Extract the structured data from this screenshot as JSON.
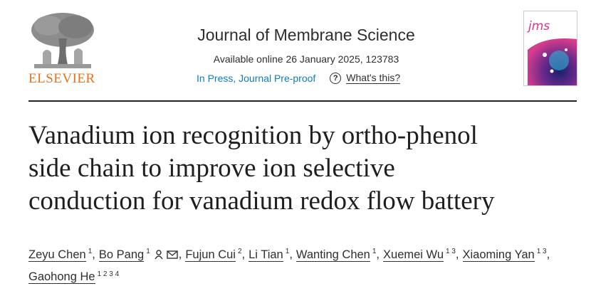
{
  "header": {
    "publisher": "ELSEVIER",
    "journal": "Journal of Membrane Science",
    "available": "Available online 26 January 2025, 123783",
    "status": "In Press, Journal Pre-proof",
    "help_icon": "?",
    "help": "What's this?",
    "cover_logo": "jms"
  },
  "title_lines": [
    "Vanadium ion recognition by ortho-phenol",
    "side chain to improve ion selective",
    "conduction for vanadium redox flow battery"
  ],
  "authors": {
    "separator": ",",
    "list": [
      {
        "name": "Zeyu Chen",
        "affiliations": "1"
      },
      {
        "name": "Bo Pang",
        "affiliations": "1",
        "corresponding": true
      },
      {
        "name": "Fujun Cui",
        "affiliations": "2"
      },
      {
        "name": "Li Tian",
        "affiliations": "1"
      },
      {
        "name": "Wanting Chen",
        "affiliations": "1"
      },
      {
        "name": "Xuemei Wu",
        "affiliations": "1 3"
      },
      {
        "name": "Xiaoming Yan",
        "affiliations": "1 3"
      },
      {
        "name": "Gaohong He",
        "affiliations": "1 2 3 4"
      }
    ]
  }
}
